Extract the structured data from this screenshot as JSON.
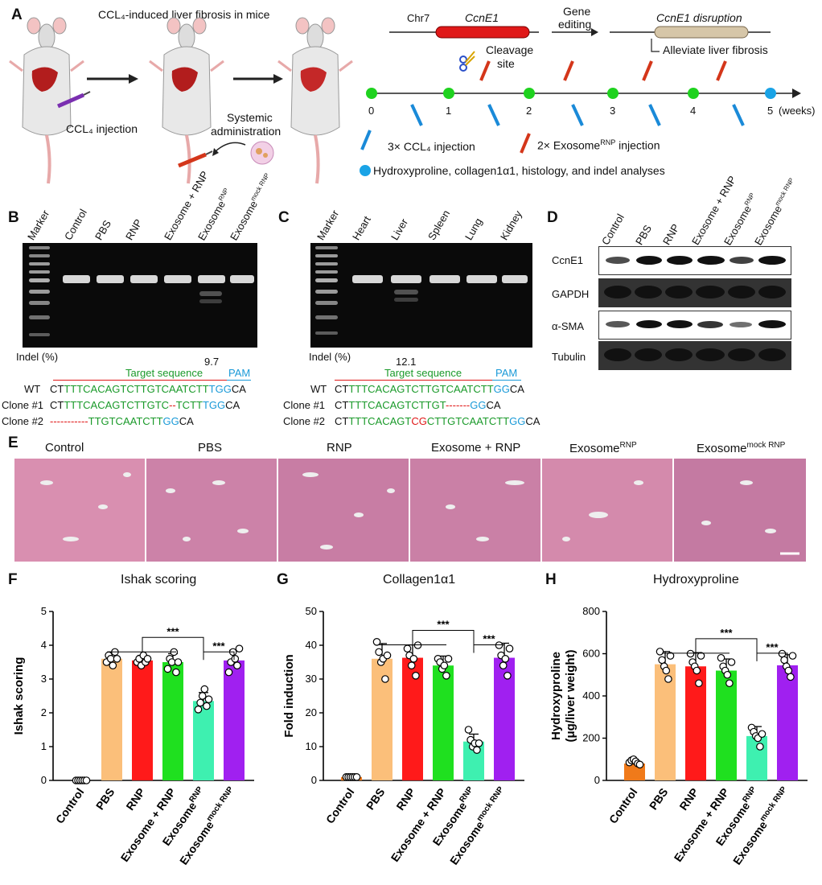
{
  "panels": {
    "a": {
      "label": "A",
      "title": "CCL₄-induced liver fibrosis in mice",
      "ccl4_injection": "CCL₄ injection",
      "systemic_admin_line1": "Systemic",
      "systemic_admin_line2": "administration",
      "chr": "Chr7",
      "gene": "CcnE1",
      "cleavage_line1": "Cleavage",
      "cleavage_line2": "site",
      "gene_editing_line1": "Gene",
      "gene_editing_line2": "editing",
      "disruption": "CcnE1 disruption",
      "alleviate": "Alleviate liver fibrosis",
      "timeline_ticks": [
        "0",
        "1",
        "2",
        "3",
        "4",
        "5"
      ],
      "weeks": "(weeks)",
      "legend_ccl4": "3× CCL₄ injection",
      "legend_exo_prefix": "2× Exosome",
      "legend_exo_sup": "RNP",
      "legend_exo_suffix": " injection",
      "legend_analysis": "Hydroxyproline, collagen1α1, histology, and indel analyses"
    },
    "b": {
      "label": "B",
      "lanes": [
        "Marker",
        "Control",
        "PBS",
        "RNP",
        "Exosome + RNP",
        "Exosome",
        "Exosome"
      ],
      "lane_sups": [
        "",
        "",
        "",
        "",
        "",
        "RNP",
        "mock RNP"
      ],
      "indel_label": "Indel (%)",
      "indel_value": "9.7",
      "target_label": "Target sequence",
      "pam_label": "PAM",
      "wt_label": "WT",
      "wt_seq": {
        "a": "CT",
        "b": "TTTCACAGTCTTGTCAATCTT",
        "c": "TGG",
        "d": "CA"
      },
      "clone1_label": "Clone #1",
      "clone1_seq": {
        "a": "CT",
        "b": "TTTCACAGTCTTGTC",
        "c": "--",
        "d": "TCTT",
        "e": "TGG",
        "f": "CA"
      },
      "clone2_label": "Clone #2",
      "clone2_seq": {
        "a": "-----------",
        "b": "TTGTCAATCTT",
        "c": "GG",
        "d": "CA"
      }
    },
    "c": {
      "label": "C",
      "lanes": [
        "Marker",
        "Heart",
        "Liver",
        "Spleen",
        "Lung",
        "Kidney"
      ],
      "indel_label": "Indel (%)",
      "indel_value": "12.1",
      "target_label": "Target sequence",
      "pam_label": "PAM",
      "wt_label": "WT",
      "wt_seq": {
        "a": "CT",
        "b": "TTTCACAGTCTTGTCAATCTT",
        "c": "GG",
        "d": "CA"
      },
      "clone1_label": "Clone #1",
      "clone1_seq": {
        "a": "CT",
        "b": "TTTCACAGTCTTGT",
        "c": "-------",
        "d": "GG",
        "e": "CA"
      },
      "clone2_label": "Clone #2",
      "clone2_seq": {
        "a": "CT",
        "b": "TTTCACAGT",
        "c": "CG",
        "d": "CTTGTCAATCTT",
        "e": "GG",
        "f": "CA"
      }
    },
    "d": {
      "label": "D",
      "lanes": [
        "Control",
        "PBS",
        "RNP",
        "Exosome + RNP",
        "Exosome",
        "Exosome"
      ],
      "lane_sups": [
        "",
        "",
        "",
        "",
        "RNP",
        "mock RNP"
      ],
      "proteins": [
        "CcnE1",
        "GAPDH",
        "α-SMA",
        "Tubulin"
      ]
    },
    "e": {
      "label": "E",
      "titles": [
        "Control",
        "PBS",
        "RNP",
        "Exosome + RNP",
        "Exosome",
        "Exosome"
      ],
      "title_sups": [
        "",
        "",
        "",
        "",
        "RNP",
        "mock RNP"
      ]
    },
    "f": {
      "label": "F"
    },
    "g": {
      "label": "G"
    },
    "h": {
      "label": "H"
    }
  },
  "chart_data": [
    {
      "type": "bar",
      "title": "Ishak scoring",
      "ylabel": "Ishak scoring",
      "ylim": [
        0,
        5
      ],
      "yticks": [
        "0",
        "1",
        "2",
        "3",
        "4",
        "5"
      ],
      "categories": [
        "Control",
        "PBS",
        "RNP",
        "Exosome + RNP",
        "Exosome",
        "Exosome"
      ],
      "category_sups": [
        "",
        "",
        "",
        "",
        "RNP",
        "mock RNP"
      ],
      "values": [
        0,
        3.6,
        3.55,
        3.5,
        2.35,
        3.55
      ],
      "errors": [
        0,
        0.2,
        0.15,
        0.25,
        0.25,
        0.3
      ],
      "colors": [
        "#f07a1a",
        "#fbbf7a",
        "#ff1a1a",
        "#1fe01f",
        "#3ef0b0",
        "#a020f0"
      ],
      "points": [
        [
          0,
          0,
          0,
          0,
          0,
          0
        ],
        [
          3.5,
          3.7,
          3.6,
          3.4,
          3.8,
          3.6
        ],
        [
          3.5,
          3.6,
          3.4,
          3.7,
          3.5,
          3.6
        ],
        [
          3.3,
          3.6,
          3.5,
          3.8,
          3.2,
          3.5
        ],
        [
          2.1,
          2.3,
          2.5,
          2.7,
          2.2,
          2.4
        ],
        [
          3.2,
          3.5,
          3.8,
          3.6,
          3.4,
          3.9
        ]
      ],
      "significance": [
        "***",
        "***"
      ]
    },
    {
      "type": "bar",
      "title": "Collagen1α1",
      "ylabel": "Fold induction",
      "ylim": [
        0,
        50
      ],
      "yticks": [
        "0",
        "10",
        "20",
        "30",
        "40",
        "50"
      ],
      "categories": [
        "Control",
        "PBS",
        "RNP",
        "Exosome + RNP",
        "Exosome",
        "Exosome"
      ],
      "category_sups": [
        "",
        "",
        "",
        "",
        "RNP",
        "mock RNP"
      ],
      "values": [
        1,
        36,
        36.3,
        34,
        11.5,
        36.3
      ],
      "errors": [
        0.3,
        4.5,
        3.8,
        2.8,
        2.2,
        4.3
      ],
      "colors": [
        "#f07a1a",
        "#fbbf7a",
        "#ff1a1a",
        "#1fe01f",
        "#3ef0b0",
        "#a020f0"
      ],
      "points": [
        [
          1,
          1,
          1,
          1,
          1,
          1
        ],
        [
          41,
          38,
          35,
          36,
          30,
          37
        ],
        [
          39,
          37,
          34,
          36,
          31,
          40
        ],
        [
          36,
          35,
          33,
          34,
          31,
          36
        ],
        [
          15,
          12,
          10,
          11,
          9,
          11
        ],
        [
          40,
          37,
          34,
          36,
          31,
          39
        ]
      ],
      "significance": [
        "***",
        "***"
      ]
    },
    {
      "type": "bar",
      "title": "Hydroxyproline",
      "ylabel": "Hydroxyproline (μg/liver weight)",
      "ylabel_line1": "Hydroxyproline",
      "ylabel_line2": "(μg/liver weight)",
      "ylim": [
        0,
        800
      ],
      "yticks": [
        "0",
        "200",
        "400",
        "600",
        "800"
      ],
      "categories": [
        "Control",
        "PBS",
        "RNP",
        "Exosome + RNP",
        "Exosome",
        "Exosome"
      ],
      "category_sups": [
        "",
        "",
        "",
        "",
        "RNP",
        "mock RNP"
      ],
      "values": [
        80,
        550,
        540,
        520,
        210,
        545
      ],
      "errors": [
        15,
        60,
        65,
        55,
        45,
        50
      ],
      "colors": [
        "#f07a1a",
        "#fbbf7a",
        "#ff1a1a",
        "#1fe01f",
        "#3ef0b0",
        "#a020f0"
      ],
      "points": [
        [
          85,
          95,
          100,
          90,
          80,
          75
        ],
        [
          610,
          570,
          540,
          520,
          480,
          590
        ],
        [
          600,
          560,
          540,
          520,
          460,
          590
        ],
        [
          580,
          540,
          520,
          500,
          460,
          560
        ],
        [
          250,
          230,
          210,
          200,
          160,
          220
        ],
        [
          600,
          570,
          540,
          520,
          490,
          590
        ]
      ],
      "significance": [
        "***",
        "***"
      ]
    }
  ]
}
